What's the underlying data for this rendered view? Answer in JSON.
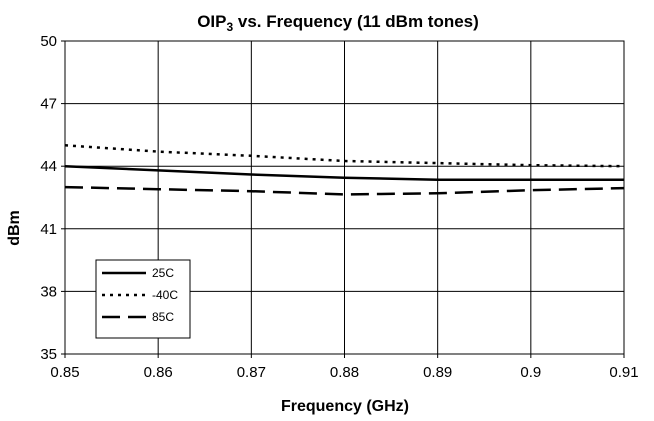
{
  "chart_data": {
    "type": "line",
    "title": {
      "main": "OIP",
      "subscript": "3",
      "rest": " vs. Frequency (11 dBm tones)"
    },
    "xlabel": "Frequency (GHz)",
    "ylabel": "dBm",
    "xlim": [
      0.85,
      0.91
    ],
    "ylim": [
      35,
      50
    ],
    "x_ticks": [
      0.85,
      0.86,
      0.87,
      0.88,
      0.89,
      0.9,
      0.91
    ],
    "x_tick_labels": [
      "0.85",
      "0.86",
      "0.87",
      "0.88",
      "0.89",
      "0.9",
      "0.91"
    ],
    "y_ticks": [
      35,
      38,
      41,
      44,
      47,
      50
    ],
    "y_tick_labels": [
      "35",
      "38",
      "41",
      "44",
      "47",
      "50"
    ],
    "grid": true,
    "legend_position": "bottom-left",
    "series": [
      {
        "name": "25C",
        "line_style": "solid",
        "color": "#000000",
        "x": [
          0.85,
          0.86,
          0.87,
          0.88,
          0.89,
          0.9,
          0.91
        ],
        "values": [
          44.0,
          43.8,
          43.6,
          43.45,
          43.35,
          43.35,
          43.35
        ]
      },
      {
        "name": "-40C",
        "line_style": "dotted",
        "color": "#000000",
        "x": [
          0.85,
          0.86,
          0.87,
          0.88,
          0.89,
          0.9,
          0.91
        ],
        "values": [
          45.0,
          44.7,
          44.5,
          44.25,
          44.15,
          44.05,
          44.0
        ]
      },
      {
        "name": "85C",
        "line_style": "dashed",
        "color": "#000000",
        "x": [
          0.85,
          0.86,
          0.87,
          0.88,
          0.89,
          0.9,
          0.91
        ],
        "values": [
          43.0,
          42.9,
          42.8,
          42.65,
          42.7,
          42.85,
          42.95
        ]
      }
    ]
  }
}
